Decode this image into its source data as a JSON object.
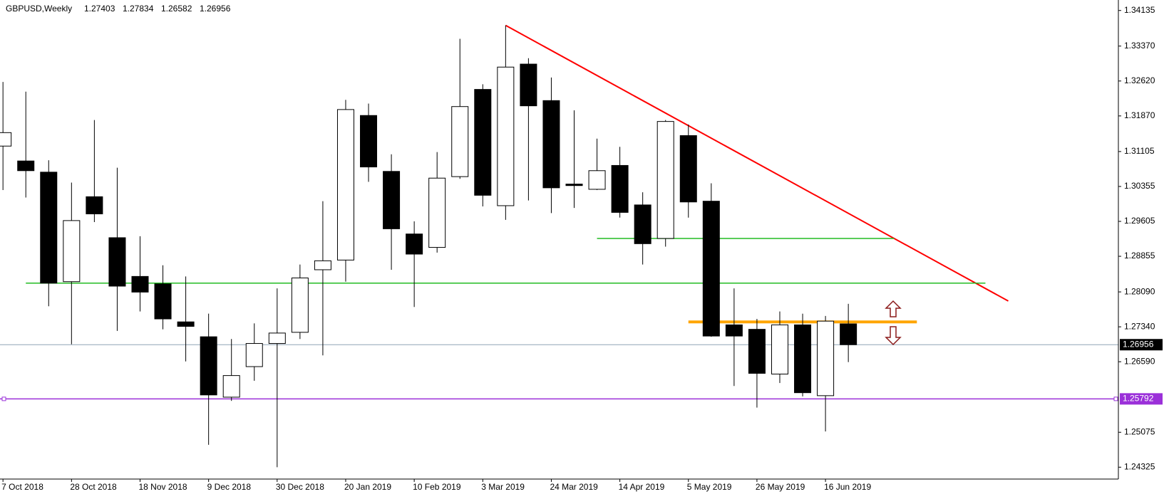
{
  "chart_data": {
    "type": "candlestick",
    "title": "GBPUSD,Weekly",
    "categories": [
      "7 Oct 2018",
      null,
      null,
      "28 Oct 2018",
      null,
      null,
      "18 Nov 2018",
      null,
      null,
      "9 Dec 2018",
      null,
      null,
      "30 Dec 2018",
      null,
      null,
      "20 Jan 2019",
      null,
      null,
      "10 Feb 2019",
      null,
      null,
      "3 Mar 2019",
      null,
      null,
      "24 Mar 2019",
      null,
      null,
      "14 Apr 2019",
      null,
      null,
      "5 May 2019",
      null,
      null,
      "26 May 2019",
      null,
      null,
      "16 Jun 2019",
      null
    ],
    "open": [
      1.31222,
      1.30902,
      1.30662,
      1.2831,
      1.30134,
      1.29254,
      1.28422,
      1.28262,
      1.27446,
      1.27126,
      1.25829,
      1.26485,
      1.26982,
      1.27222,
      1.28566,
      1.28774,
      1.31879,
      1.30678,
      1.29334,
      1.29046,
      1.30566,
      1.32439,
      1.29942,
      1.32983,
      1.32199,
      1.30406,
      1.30294,
      1.30806,
      1.29958,
      1.29238,
      1.31447,
      1.30038,
      1.27382,
      1.27286,
      1.26325,
      1.27382,
      1.25861,
      1.27403
    ],
    "high": [
      1.32599,
      1.32391,
      1.30918,
      1.30438,
      1.31782,
      1.30758,
      1.29286,
      1.28662,
      1.28422,
      1.27622,
      1.27078,
      1.27414,
      1.28166,
      1.28678,
      1.30038,
      1.32215,
      1.32135,
      1.31046,
      1.29606,
      1.31094,
      1.33527,
      1.32551,
      1.33815,
      1.33111,
      1.32695,
      1.31991,
      1.31382,
      1.31206,
      1.3023,
      1.31782,
      1.31687,
      1.30422,
      1.28166,
      1.2751,
      1.2767,
      1.27622,
      1.27574,
      1.27834
    ],
    "low": [
      1.30278,
      1.30118,
      1.27782,
      1.26965,
      1.2959,
      1.27253,
      1.2767,
      1.27286,
      1.26597,
      1.24805,
      1.25749,
      1.26181,
      1.24325,
      1.27078,
      1.26726,
      1.2831,
      1.30454,
      1.28566,
      1.27766,
      1.28934,
      1.30518,
      1.29926,
      1.29638,
      1.30054,
      1.29782,
      1.29894,
      1.30278,
      1.29686,
      1.28678,
      1.29062,
      1.29686,
      1.27126,
      1.26069,
      1.25605,
      1.26133,
      1.25845,
      1.25093,
      1.26582
    ],
    "close": [
      1.31511,
      1.30694,
      1.28278,
      1.29622,
      1.29766,
      1.28214,
      1.28086,
      1.2751,
      1.2735,
      1.25877,
      1.26293,
      1.26982,
      1.27206,
      1.2839,
      1.28758,
      1.32007,
      1.30774,
      1.29446,
      1.28902,
      1.30534,
      1.32071,
      1.30166,
      1.32919,
      1.32087,
      1.30326,
      1.30374,
      1.30694,
      1.29798,
      1.29126,
      1.31751,
      1.30022,
      1.27142,
      1.27142,
      1.26341,
      1.27382,
      1.25925,
      1.27462,
      1.26956
    ],
    "up_color": "#ffffff",
    "down_color": "#000000",
    "last_price_color": "#8fa3b5",
    "ylim": [
      1.2407,
      1.3436
    ],
    "yticks": [
      1.34135,
      {
        "value": 1.3337,
        "label": "1.33370"
      },
      {
        "value": 1.3262,
        "label": "1.32620"
      },
      {
        "value": 1.3187,
        "label": "1.31870"
      },
      1.31105,
      1.30355,
      1.29605,
      1.28855,
      {
        "value": 1.2809,
        "label": "1.28090"
      },
      {
        "value": 1.2734,
        "label": "1.27340"
      },
      {
        "value": 1.2659,
        "label": "1.26590"
      },
      1.25075,
      1.24325
    ],
    "lines": [
      {
        "color": "#ff0000",
        "from": [
          22,
          1.33815
        ],
        "to": [
          44,
          1.27894
        ]
      },
      {
        "color": "#22bb22",
        "from": [
          1,
          1.28278
        ],
        "to": [
          43,
          1.28278
        ]
      },
      {
        "color": "#22bb22",
        "from": [
          26,
          1.29238
        ],
        "to": [
          39,
          1.29238
        ]
      },
      {
        "color": "#ffa500",
        "from": [
          30,
          1.27446
        ],
        "to": [
          40,
          1.27446
        ]
      },
      {
        "color": "#9b30d9",
        "price": 1.25792
      }
    ]
  }
}
